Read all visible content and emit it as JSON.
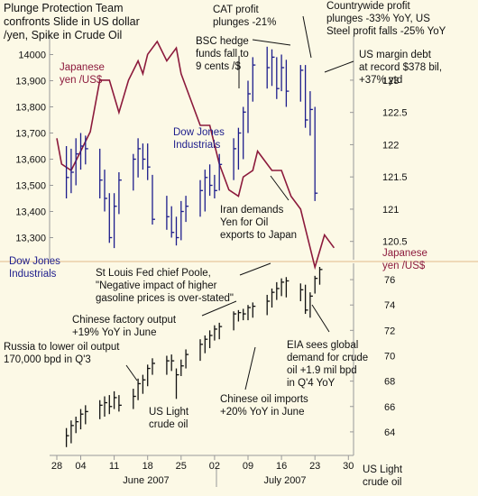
{
  "colors": {
    "background": "#fcf9e6",
    "dow": "#1d1d8c",
    "yen": "#8c1a3c",
    "oil": "#111111",
    "text": "#111111",
    "grid": "#e2b98a",
    "axis": "#888888"
  },
  "chart_data": [
    {
      "type": "line",
      "panel": "top",
      "title": "Plunge Protection Team confronts Slide in US dollar /yen, Spike in Crude Oil",
      "title_lines": [
        "Plunge Protection Team",
        "confronts Slide in US dollar",
        "/yen, Spike in Crude Oil"
      ],
      "left_axis": {
        "label_lines": [
          "Dow Jones",
          "Industrials"
        ],
        "ticks": [
          "14000",
          "13,900",
          "13,800",
          "13,700",
          "13,600",
          "13,500",
          "13,400",
          "13,300"
        ],
        "range": [
          13250,
          14050
        ]
      },
      "right_axis": {
        "label_lines": [
          "Japanese",
          "yen /US$"
        ],
        "ticks": [
          "123",
          "122.5",
          "122",
          "121.5",
          "121",
          "120.5"
        ],
        "range": [
          120.3,
          123.6
        ]
      },
      "series": [
        {
          "name": "Dow Jones Industrials",
          "kind": "hlc_bars",
          "axis": "left",
          "bars": [
            {
              "day": 1,
              "low": 13450,
              "high": 13650,
              "close": 13530
            },
            {
              "day": 2,
              "low": 13470,
              "high": 13640,
              "close": 13550
            },
            {
              "day": 3,
              "low": 13500,
              "high": 13680,
              "close": 13620
            },
            {
              "day": 4,
              "low": 13560,
              "high": 13700,
              "close": 13650
            },
            {
              "day": 5,
              "low": 13580,
              "high": 13690,
              "close": 13640
            },
            {
              "day": 8,
              "low": 13450,
              "high": 13640,
              "close": 13520
            },
            {
              "day": 9,
              "low": 13400,
              "high": 13560,
              "close": 13450
            },
            {
              "day": 10,
              "low": 13280,
              "high": 13470,
              "close": 13300
            },
            {
              "day": 11,
              "low": 13260,
              "high": 13470,
              "close": 13420
            },
            {
              "day": 12,
              "low": 13390,
              "high": 13550,
              "close": 13520
            },
            {
              "day": 15,
              "low": 13480,
              "high": 13620,
              "close": 13600
            },
            {
              "day": 16,
              "low": 13530,
              "high": 13680,
              "close": 13640
            },
            {
              "day": 17,
              "low": 13560,
              "high": 13660,
              "close": 13600
            },
            {
              "day": 18,
              "low": 13520,
              "high": 13660,
              "close": 13570
            },
            {
              "day": 19,
              "low": 13350,
              "high": 13540,
              "close": 13370
            },
            {
              "day": 22,
              "low": 13330,
              "high": 13460,
              "close": 13380
            },
            {
              "day": 23,
              "low": 13300,
              "high": 13420,
              "close": 13320
            },
            {
              "day": 24,
              "low": 13270,
              "high": 13380,
              "close": 13300
            },
            {
              "day": 25,
              "low": 13290,
              "high": 13440,
              "close": 13400
            },
            {
              "day": 26,
              "low": 13360,
              "high": 13460,
              "close": 13420
            },
            {
              "day": 29,
              "low": 13380,
              "high": 13520,
              "close": 13480
            },
            {
              "day": 30,
              "low": 13400,
              "high": 13560,
              "close": 13530
            },
            {
              "day": 31,
              "low": 13460,
              "high": 13580,
              "close": 13500
            },
            {
              "day": 32,
              "low": 13450,
              "high": 13540,
              "close": 13480
            },
            {
              "day": 33,
              "low": 13480,
              "high": 13620,
              "close": 13580
            },
            {
              "day": 36,
              "low": 13520,
              "high": 13680,
              "close": 13640
            },
            {
              "day": 37,
              "low": 13560,
              "high": 13720,
              "close": 13700
            },
            {
              "day": 38,
              "low": 13600,
              "high": 13800,
              "close": 13780
            },
            {
              "day": 39,
              "low": 13700,
              "high": 13900,
              "close": 13850
            },
            {
              "day": 40,
              "low": 13820,
              "high": 13990,
              "close": 13960
            },
            {
              "day": 43,
              "low": 13870,
              "high": 14030,
              "close": 13950
            },
            {
              "day": 44,
              "low": 13880,
              "high": 14020,
              "close": 13990
            },
            {
              "day": 45,
              "low": 13830,
              "high": 13990,
              "close": 13870
            },
            {
              "day": 46,
              "low": 13860,
              "high": 14000,
              "close": 13950
            },
            {
              "day": 47,
              "low": 13800,
              "high": 13980,
              "close": 13860
            },
            {
              "day": 50,
              "low": 13820,
              "high": 13960,
              "close": 13940
            },
            {
              "day": 51,
              "low": 13720,
              "high": 13960,
              "close": 13750
            },
            {
              "day": 52,
              "low": 13690,
              "high": 13860,
              "close": 13790
            },
            {
              "day": 53,
              "low": 13440,
              "high": 13800,
              "close": 13470
            }
          ]
        },
        {
          "name": "Japanese yen /US$",
          "kind": "line",
          "axis": "right",
          "x": [
            -1,
            0,
            2,
            4,
            6,
            8,
            10,
            12,
            14,
            16,
            17,
            18,
            20,
            22,
            24,
            25,
            27,
            29,
            31,
            33,
            35,
            37,
            38,
            40,
            41,
            43,
            44,
            46,
            48,
            50,
            51,
            52,
            53,
            54,
            55,
            56,
            57
          ],
          "y": [
            122.1,
            121.7,
            121.6,
            121.9,
            122.2,
            123.0,
            123.0,
            122.5,
            123.0,
            123.3,
            123.1,
            123.4,
            123.6,
            123.3,
            123.5,
            123.1,
            122.7,
            122.3,
            122.3,
            121.7,
            121.3,
            121.2,
            121.5,
            121.6,
            121.9,
            121.7,
            121.6,
            121.6,
            121.2,
            121.0,
            120.7,
            120.4,
            120.1,
            120.35,
            120.6,
            120.5,
            120.4
          ]
        }
      ]
    },
    {
      "type": "line",
      "panel": "bottom",
      "right_axis": {
        "label_lines": [
          "US Light",
          "crude oil"
        ],
        "ticks": [
          "76",
          "74",
          "72",
          "70",
          "68",
          "66",
          "64"
        ],
        "range": [
          62.5,
          77
        ]
      },
      "x_axis": {
        "tick_labels": [
          "28",
          "04",
          "11",
          "18",
          "25",
          "02",
          "09",
          "16",
          "23",
          "30"
        ],
        "tick_days": [
          -1,
          4,
          11,
          18,
          25,
          32,
          39,
          46,
          53,
          60
        ],
        "months": [
          "June 2007",
          "July 2007"
        ]
      },
      "series": [
        {
          "name": "US Light crude oil",
          "kind": "hlc_bars",
          "axis": "right",
          "bars": [
            {
              "day": 1,
              "low": 62.8,
              "high": 64.3,
              "close": 63.7
            },
            {
              "day": 2,
              "low": 63.1,
              "high": 64.9,
              "close": 64.5
            },
            {
              "day": 3,
              "low": 63.9,
              "high": 65.2,
              "close": 64.8
            },
            {
              "day": 4,
              "low": 64.2,
              "high": 65.8,
              "close": 65.4
            },
            {
              "day": 5,
              "low": 64.6,
              "high": 66.1,
              "close": 65.6
            },
            {
              "day": 8,
              "low": 65.0,
              "high": 66.5,
              "close": 66.1
            },
            {
              "day": 9,
              "low": 65.2,
              "high": 66.8,
              "close": 66.3
            },
            {
              "day": 10,
              "low": 65.4,
              "high": 66.9,
              "close": 66.0
            },
            {
              "day": 11,
              "low": 65.8,
              "high": 67.2,
              "close": 66.7
            },
            {
              "day": 12,
              "low": 65.6,
              "high": 66.9,
              "close": 66.1
            },
            {
              "day": 15,
              "low": 65.8,
              "high": 67.4,
              "close": 66.8
            },
            {
              "day": 16,
              "low": 66.5,
              "high": 68.2,
              "close": 67.8
            },
            {
              "day": 17,
              "low": 67.0,
              "high": 68.5,
              "close": 68.1
            },
            {
              "day": 18,
              "low": 67.6,
              "high": 69.3,
              "close": 69.0
            },
            {
              "day": 19,
              "low": 68.5,
              "high": 69.8,
              "close": 69.4
            },
            {
              "day": 22,
              "low": 68.5,
              "high": 70.0,
              "close": 69.6
            },
            {
              "day": 23,
              "low": 68.8,
              "high": 70.1,
              "close": 69.6
            },
            {
              "day": 24,
              "low": 66.6,
              "high": 69.0,
              "close": 68.5
            },
            {
              "day": 25,
              "low": 68.4,
              "high": 69.7,
              "close": 69.2
            },
            {
              "day": 26,
              "low": 69.0,
              "high": 70.5,
              "close": 70.1
            },
            {
              "day": 29,
              "low": 69.6,
              "high": 71.3,
              "close": 70.9
            },
            {
              "day": 30,
              "low": 70.2,
              "high": 71.6,
              "close": 71.3
            },
            {
              "day": 31,
              "low": 70.6,
              "high": 72.0,
              "close": 71.6
            },
            {
              "day": 32,
              "low": 71.2,
              "high": 72.4,
              "close": 72.1
            },
            {
              "day": 33,
              "low": 71.3,
              "high": 72.6,
              "close": 72.3
            },
            {
              "day": 36,
              "low": 72.0,
              "high": 73.5,
              "close": 73.3
            },
            {
              "day": 37,
              "low": 72.7,
              "high": 73.6,
              "close": 73.4
            },
            {
              "day": 38,
              "low": 72.8,
              "high": 73.7,
              "close": 73.3
            },
            {
              "day": 39,
              "low": 72.8,
              "high": 74.0,
              "close": 73.8
            },
            {
              "day": 40,
              "low": 73.0,
              "high": 74.2,
              "close": 73.9
            },
            {
              "day": 43,
              "low": 73.2,
              "high": 74.8,
              "close": 74.3
            },
            {
              "day": 44,
              "low": 73.8,
              "high": 75.3,
              "close": 75.0
            },
            {
              "day": 45,
              "low": 74.4,
              "high": 75.8,
              "close": 75.3
            },
            {
              "day": 46,
              "low": 74.7,
              "high": 76.1,
              "close": 75.8
            },
            {
              "day": 47,
              "low": 74.6,
              "high": 76.2,
              "close": 75.9
            },
            {
              "day": 50,
              "low": 74.3,
              "high": 75.7,
              "close": 75.2
            },
            {
              "day": 51,
              "low": 73.3,
              "high": 75.6,
              "close": 73.6
            },
            {
              "day": 52,
              "low": 73.0,
              "high": 75.0,
              "close": 74.7
            },
            {
              "day": 53,
              "low": 74.9,
              "high": 76.3,
              "close": 76.1
            },
            {
              "day": 54,
              "low": 75.6,
              "high": 77.0,
              "close": 76.8
            }
          ]
        }
      ]
    }
  ],
  "annotations": [
    {
      "id": "cat",
      "lines": [
        "CAT profit",
        "plunges -21%"
      ]
    },
    {
      "id": "countrywide",
      "lines": [
        "Countrywide profit",
        "plunges -33% YoY, US",
        "Steel profit falls -25% YoY"
      ]
    },
    {
      "id": "bsc",
      "lines": [
        "BSC hedge",
        "funds fall to",
        "9 cents /$"
      ]
    },
    {
      "id": "margin",
      "lines": [
        "US margin debt",
        "at record $378 bil,",
        "+37% ytd"
      ]
    },
    {
      "id": "yen_label",
      "lines": [
        "Japanese",
        "yen /US$"
      ]
    },
    {
      "id": "dow_label",
      "lines": [
        "Dow Jones",
        "Industrials"
      ]
    },
    {
      "id": "iran",
      "lines": [
        "Iran demands",
        "Yen for Oil",
        "exports to Japan"
      ]
    },
    {
      "id": "poole",
      "lines": [
        "St Louis Fed chief Poole,",
        "\"Negative impact of higher",
        "gasoline prices is over-stated\""
      ]
    },
    {
      "id": "china_factory",
      "lines": [
        "Chinese factory output",
        "+19% YoY in June"
      ]
    },
    {
      "id": "russia",
      "lines": [
        "Russia to lower oil output",
        "170,000 bpd in Q'3"
      ]
    },
    {
      "id": "eia",
      "lines": [
        "EIA sees global",
        "demand for crude",
        "oil +1.9 mil bpd",
        "in Q'4 YoY"
      ]
    },
    {
      "id": "oil_label",
      "lines": [
        "US Light",
        "crude oil"
      ]
    },
    {
      "id": "china_imports",
      "lines": [
        "Chinese oil imports",
        "+20% YoY in June"
      ]
    }
  ]
}
